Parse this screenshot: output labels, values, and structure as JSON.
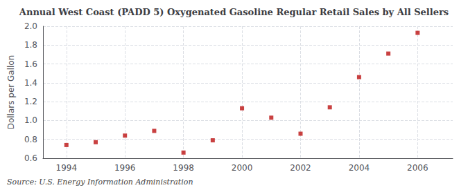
{
  "chart_data": {
    "type": "scatter",
    "title": "Annual West Coast (PADD 5) Oxygenated Gasoline Regular Retail Sales by All Sellers",
    "ylabel": "Dollars per Gallon",
    "source": "Source: U.S. Energy Information Administration",
    "x": [
      1994,
      1995,
      1996,
      1997,
      1998,
      1999,
      2000,
      2001,
      2002,
      2003,
      2004,
      2005,
      2006
    ],
    "values": [
      0.74,
      0.77,
      0.84,
      0.89,
      0.66,
      0.79,
      1.13,
      1.03,
      0.86,
      1.14,
      1.46,
      1.71,
      1.93
    ],
    "color": "#bb1111",
    "marker": "square",
    "xlim": [
      1993.2,
      2007.2
    ],
    "xticks": [
      1994,
      1996,
      1998,
      2000,
      2002,
      2004,
      2006
    ],
    "ylim": [
      0.6,
      2.0
    ],
    "yticks": [
      0.6,
      0.8,
      {
        "value": 1.0,
        "label": "1.0"
      },
      1.2,
      1.4,
      1.6,
      1.8,
      {
        "value": 2.0,
        "label": "2.0"
      }
    ],
    "grid": true
  }
}
